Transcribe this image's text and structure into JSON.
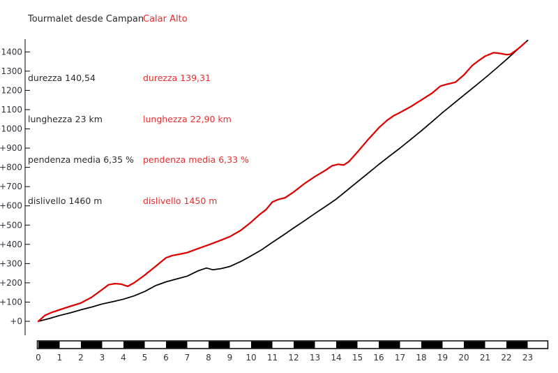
{
  "header": {
    "series1_title": "Tourmalet desde Campan",
    "series2_title": "Calar Alto"
  },
  "stats": {
    "series1": [
      "durezza 140,54",
      "lunghezza 23 km",
      "pendenza media 6,35 %",
      "dislivello 1460 m"
    ],
    "series2": [
      "durezza 139,31",
      "lunghezza 22,90 km",
      "pendenza media 6,33 %",
      "dislivello 1450 m"
    ]
  },
  "colors": {
    "series1_line": "#000000",
    "series2_line": "#dd0000",
    "series2_text": "#e62e2e",
    "axis_text": "#33333d",
    "axis_line": "#000000",
    "scalebar_fill": "#000000",
    "background": "#ffffff"
  },
  "chart_data": {
    "type": "line",
    "title": "",
    "xlabel": "",
    "ylabel": "",
    "x_unit": "km",
    "y_unit": "m",
    "xlim": [
      0,
      23.9
    ],
    "ylim": [
      0,
      1460
    ],
    "grid": false,
    "legend_position": "top-left-as-titles",
    "y_tick_step": 100,
    "y_tick_labels": [
      "+0",
      "+100",
      "+200",
      "+300",
      "+400",
      "+500",
      "+600",
      "+700",
      "+800",
      "+900",
      "+1000",
      "+1100",
      "+1200",
      "+1300",
      "+1400"
    ],
    "x_tick_labels": [
      "0",
      "1",
      "2",
      "3",
      "4",
      "5",
      "6",
      "7",
      "8",
      "9",
      "10",
      "11",
      "12",
      "13",
      "14",
      "15",
      "16",
      "17",
      "18",
      "19",
      "20",
      "21",
      "22",
      "23"
    ],
    "scale_bar": {
      "style": "alternating-black-white-per-km",
      "first_segment": "black",
      "segments": 23,
      "tail_white_to_km": 23.9
    },
    "series": [
      {
        "name": "Tourmalet desde Campan",
        "color": "#000000",
        "length_km": 23,
        "gain_m": 1460,
        "profile": [
          [
            0,
            0
          ],
          [
            0.5,
            14
          ],
          [
            1,
            30
          ],
          [
            1.5,
            44
          ],
          [
            2,
            60
          ],
          [
            2.5,
            74
          ],
          [
            3,
            90
          ],
          [
            3.5,
            102
          ],
          [
            4,
            115
          ],
          [
            4.5,
            132
          ],
          [
            5,
            155
          ],
          [
            5.5,
            185
          ],
          [
            6,
            205
          ],
          [
            6.5,
            220
          ],
          [
            7,
            235
          ],
          [
            7.5,
            262
          ],
          [
            7.9,
            277
          ],
          [
            8.2,
            268
          ],
          [
            8.6,
            274
          ],
          [
            9,
            285
          ],
          [
            9.5,
            310
          ],
          [
            10,
            340
          ],
          [
            10.5,
            372
          ],
          [
            11,
            410
          ],
          [
            11.5,
            447
          ],
          [
            12,
            485
          ],
          [
            12.5,
            522
          ],
          [
            13,
            560
          ],
          [
            13.5,
            597
          ],
          [
            14,
            635
          ],
          [
            14.5,
            680
          ],
          [
            15,
            725
          ],
          [
            15.5,
            770
          ],
          [
            16,
            815
          ],
          [
            16.5,
            858
          ],
          [
            17,
            900
          ],
          [
            17.5,
            945
          ],
          [
            18,
            990
          ],
          [
            18.5,
            1037
          ],
          [
            19,
            1085
          ],
          [
            19.5,
            1130
          ],
          [
            20,
            1175
          ],
          [
            20.5,
            1220
          ],
          [
            21,
            1265
          ],
          [
            21.5,
            1312
          ],
          [
            22,
            1360
          ],
          [
            22.5,
            1410
          ],
          [
            23,
            1460
          ]
        ]
      },
      {
        "name": "Calar Alto",
        "color": "#dd0000",
        "length_km": 22.9,
        "gain_m": 1450,
        "profile": [
          [
            0,
            0
          ],
          [
            0.3,
            30
          ],
          [
            0.6,
            45
          ],
          [
            1,
            60
          ],
          [
            1.5,
            78
          ],
          [
            2,
            95
          ],
          [
            2.5,
            125
          ],
          [
            3,
            165
          ],
          [
            3.3,
            190
          ],
          [
            3.6,
            196
          ],
          [
            3.9,
            193
          ],
          [
            4.2,
            182
          ],
          [
            4.5,
            200
          ],
          [
            5,
            240
          ],
          [
            5.5,
            285
          ],
          [
            6,
            330
          ],
          [
            6.3,
            342
          ],
          [
            6.6,
            348
          ],
          [
            7,
            357
          ],
          [
            7.5,
            378
          ],
          [
            8,
            397
          ],
          [
            8.5,
            418
          ],
          [
            9,
            440
          ],
          [
            9.5,
            472
          ],
          [
            10,
            515
          ],
          [
            10.4,
            555
          ],
          [
            10.7,
            580
          ],
          [
            11,
            620
          ],
          [
            11.3,
            634
          ],
          [
            11.6,
            642
          ],
          [
            12,
            672
          ],
          [
            12.5,
            715
          ],
          [
            13,
            752
          ],
          [
            13.5,
            785
          ],
          [
            13.8,
            808
          ],
          [
            14.1,
            816
          ],
          [
            14.35,
            812
          ],
          [
            14.6,
            830
          ],
          [
            15,
            880
          ],
          [
            15.5,
            945
          ],
          [
            16,
            1005
          ],
          [
            16.4,
            1045
          ],
          [
            16.7,
            1068
          ],
          [
            17,
            1085
          ],
          [
            17.5,
            1115
          ],
          [
            18,
            1150
          ],
          [
            18.5,
            1185
          ],
          [
            18.9,
            1222
          ],
          [
            19.2,
            1232
          ],
          [
            19.6,
            1242
          ],
          [
            20,
            1280
          ],
          [
            20.4,
            1330
          ],
          [
            20.7,
            1355
          ],
          [
            21,
            1378
          ],
          [
            21.4,
            1396
          ],
          [
            21.7,
            1392
          ],
          [
            22,
            1386
          ],
          [
            22.2,
            1388
          ],
          [
            22.5,
            1412
          ],
          [
            22.7,
            1430
          ],
          [
            22.9,
            1450
          ]
        ]
      }
    ]
  }
}
